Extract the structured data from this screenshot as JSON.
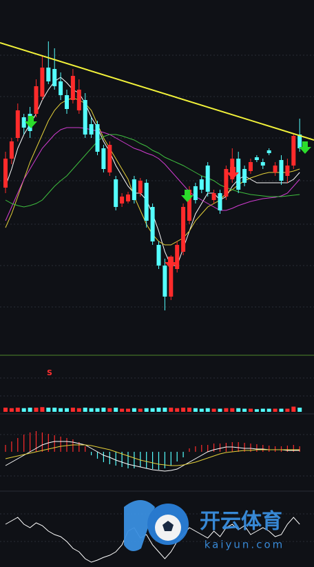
{
  "chart_data": [
    {
      "type": "candlestick",
      "up_color": "#ff2b2b",
      "down_color": "#54ffff",
      "ylim": [
        0,
        500
      ],
      "open": [
        228,
        270,
        300,
        330,
        335,
        335,
        360,
        402,
        400,
        382,
        362,
        355,
        340,
        355,
        320,
        320,
        285,
        250,
        240,
        205,
        208,
        240,
        220,
        235,
        200,
        145,
        115,
        70,
        110,
        135,
        180,
        230,
        240,
        260,
        210,
        220,
        215,
        240,
        270,
        255,
        252,
        272,
        265,
        282,
        250,
        268,
        245,
        260,
        305
      ],
      "high": [
        280,
        300,
        350,
        335,
        345,
        385,
        420,
        440,
        430,
        395,
        370,
        400,
        385,
        365,
        330,
        325,
        290,
        295,
        245,
        220,
        222,
        245,
        242,
        240,
        205,
        150,
        125,
        130,
        150,
        205,
        230,
        235,
        245,
        265,
        225,
        225,
        260,
        285,
        280,
        260,
        270,
        275,
        270,
        285,
        265,
        275,
        270,
        305,
        328
      ],
      "low": [
        220,
        262,
        295,
        305,
        300,
        330,
        355,
        378,
        370,
        355,
        335,
        350,
        335,
        300,
        300,
        275,
        250,
        245,
        195,
        200,
        205,
        205,
        215,
        170,
        145,
        110,
        50,
        65,
        105,
        130,
        175,
        205,
        220,
        215,
        205,
        190,
        210,
        235,
        220,
        230,
        248,
        265,
        255,
        275,
        245,
        232,
        235,
        255,
        280
      ],
      "close": [
        270,
        295,
        340,
        315,
        310,
        375,
        402,
        382,
        375,
        362,
        342,
        390,
        370,
        305,
        305,
        280,
        255,
        290,
        200,
        215,
        218,
        210,
        238,
        180,
        150,
        115,
        70,
        125,
        145,
        200,
        225,
        210,
        225,
        222,
        220,
        195,
        255,
        270,
        225,
        235,
        265,
        268,
        260,
        278,
        260,
        238,
        260,
        303,
        285
      ],
      "series": [
        {
          "color": "#ffffff",
          "values": [
            230,
            255,
            285,
            305,
            320,
            335,
            355,
            370,
            382,
            388,
            380,
            370,
            365,
            350,
            330,
            315,
            295,
            280,
            260,
            245,
            230,
            220,
            220,
            210,
            190,
            165,
            135,
            115,
            115,
            140,
            165,
            190,
            205,
            220,
            220,
            210,
            215,
            230,
            240,
            245,
            240,
            235,
            235,
            235,
            235,
            235,
            235,
            240,
            250
          ]
        },
        {
          "color": "#e6d23a",
          "values": [
            170,
            190,
            215,
            240,
            265,
            285,
            305,
            325,
            340,
            350,
            355,
            358,
            355,
            350,
            340,
            320,
            300,
            285,
            270,
            255,
            240,
            215,
            195,
            175,
            160,
            150,
            145,
            145,
            150,
            155,
            165,
            180,
            190,
            200,
            205,
            210,
            220,
            225,
            232,
            238,
            242,
            245,
            248,
            250,
            250,
            250,
            250,
            252,
            255
          ]
        },
        {
          "color": "#d23cd2",
          "values": [
            180,
            200,
            220,
            240,
            255,
            270,
            285,
            295,
            305,
            312,
            315,
            315,
            315,
            314,
            312,
            310,
            308,
            305,
            300,
            295,
            290,
            285,
            282,
            278,
            275,
            270,
            262,
            252,
            242,
            232,
            222,
            215,
            210,
            205,
            200,
            195,
            195,
            198,
            202,
            205,
            208,
            210,
            212,
            213,
            214,
            216,
            220,
            230,
            240
          ]
        },
        {
          "color": "#3fbf3f",
          "values": [
            210,
            205,
            202,
            200,
            202,
            205,
            210,
            220,
            230,
            238,
            245,
            255,
            265,
            275,
            285,
            295,
            302,
            305,
            305,
            303,
            300,
            297,
            292,
            288,
            282,
            278,
            272,
            268,
            264,
            260,
            255,
            250,
            245,
            242,
            238,
            232,
            228,
            225,
            222,
            220,
            218,
            217,
            216,
            215,
            215,
            215,
            216,
            217,
            218
          ]
        }
      ],
      "signal_label": "S"
    },
    {
      "type": "bar",
      "ylim": [
        0,
        100
      ],
      "values": [
        8,
        7,
        8,
        7,
        8,
        8,
        9,
        8,
        8,
        7,
        7,
        8,
        7,
        8,
        7,
        7,
        8,
        7,
        8,
        6,
        6,
        7,
        6,
        7,
        7,
        8,
        8,
        8,
        7,
        8,
        8,
        7,
        6,
        7,
        6,
        6,
        7,
        7,
        7,
        6,
        6,
        5,
        6,
        6,
        6,
        6,
        6,
        10,
        8
      ]
    },
    {
      "type": "macd",
      "ylim": [
        -50,
        50
      ],
      "up_color": "#ff2b2b",
      "down_color": "#54ffff",
      "values": [
        10,
        15,
        20,
        25,
        28,
        30,
        28,
        26,
        24,
        22,
        20,
        18,
        14,
        8,
        -5,
        -10,
        -15,
        -18,
        -20,
        -22,
        -24,
        -24,
        -22,
        -24,
        -25,
        -26,
        -24,
        -20,
        -14,
        -8,
        5,
        8,
        10,
        10,
        12,
        12,
        13,
        14,
        14,
        13,
        12,
        11,
        10,
        9,
        8,
        8,
        9,
        10,
        8
      ],
      "series": [
        {
          "color": "#ffffff",
          "values": [
            -20,
            -15,
            -10,
            -5,
            0,
            5,
            10,
            13,
            15,
            15,
            15,
            14,
            12,
            10,
            5,
            0,
            -5,
            -8,
            -12,
            -15,
            -18,
            -20,
            -22,
            -24,
            -26,
            -27,
            -28,
            -27,
            -25,
            -20,
            -15,
            -10,
            -5,
            0,
            3,
            5,
            7,
            7,
            6,
            5,
            5,
            4,
            4,
            3,
            3,
            3,
            2,
            2,
            2
          ]
        },
        {
          "color": "#e6d23a",
          "values": [
            -10,
            -8,
            -6,
            -4,
            -2,
            0,
            2,
            4,
            6,
            8,
            9,
            10,
            10,
            10,
            9,
            7,
            5,
            3,
            0,
            -3,
            -6,
            -9,
            -12,
            -14,
            -16,
            -18,
            -19,
            -20,
            -20,
            -19,
            -17,
            -15,
            -12,
            -9,
            -6,
            -3,
            -1,
            0,
            1,
            2,
            2,
            3,
            3,
            3,
            3,
            3,
            3,
            3,
            3
          ]
        }
      ]
    },
    {
      "type": "line",
      "ylim": [
        0,
        107
      ],
      "series": [
        {
          "color": "#ffffff",
          "values": [
            62,
            67,
            72,
            62,
            57,
            64,
            60,
            52,
            47,
            44,
            37,
            27,
            22,
            12,
            7,
            10,
            14,
            17,
            22,
            32,
            52,
            57,
            42,
            47,
            32,
            22,
            12,
            22,
            37,
            47,
            57,
            52,
            47,
            42,
            52,
            44,
            57,
            62,
            54,
            60,
            47,
            52,
            57,
            52,
            44,
            47,
            62,
            72,
            62
          ]
        }
      ]
    }
  ],
  "watermark": {
    "title": "开云体育",
    "url": "kaiyun.com"
  }
}
